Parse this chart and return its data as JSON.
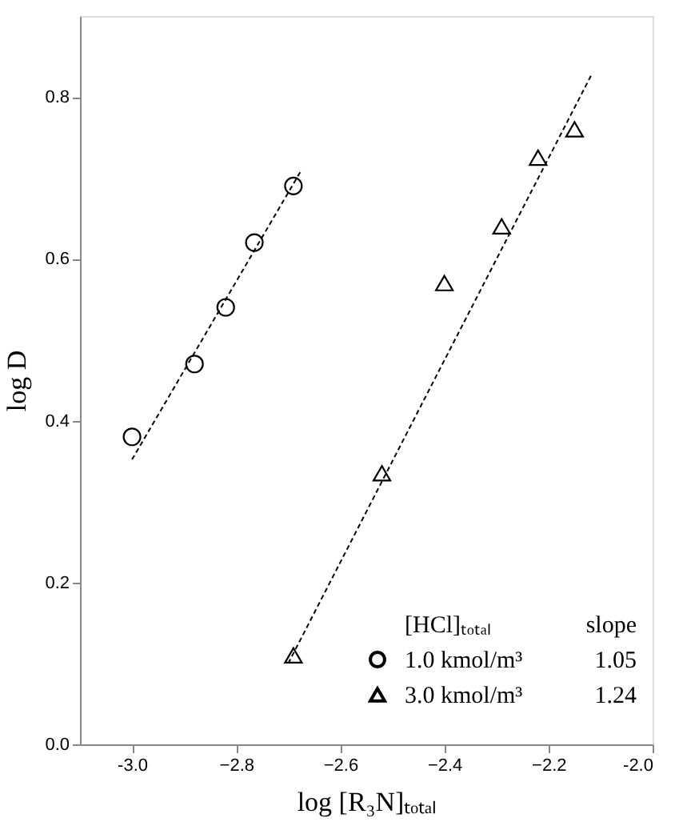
{
  "chart_data": {
    "type": "scatter",
    "xlabel": "log [R₃N]ₜₒₜₐₗ",
    "ylabel": "log D",
    "xlim": [
      -3.1,
      -2.0
    ],
    "xticks": [
      {
        "value": -3.0,
        "label": "-3.0"
      },
      -2.8,
      -2.6,
      -2.4,
      -2.2,
      {
        "value": -2.0,
        "label": "-2.0"
      }
    ],
    "ylim": [
      0.0,
      0.9
    ],
    "yticks": [
      {
        "value": 0.0,
        "label": "0.0"
      },
      0.2,
      0.4,
      0.6,
      0.8
    ],
    "grid": false,
    "legend": "bottom right",
    "legend_title": "[HCl]ₜₒₜₐₗ",
    "annotations": [
      "slope",
      "1.05",
      "1.24"
    ],
    "series": [
      {
        "name": "1.0 kmol/m³",
        "color": "#000000",
        "marker": "circle",
        "x": [
          -3.0,
          -2.88,
          -2.82,
          -2.765,
          -2.69
        ],
        "values": [
          0.38,
          0.47,
          0.54,
          0.62,
          0.69
        ]
      },
      {
        "name": "3.0 kmol/m³",
        "color": "#000000",
        "marker": "triangle",
        "x": [
          -2.69,
          -2.52,
          -2.4,
          -2.29,
          -2.22,
          -2.15
        ],
        "values": [
          0.11,
          0.335,
          0.57,
          0.64,
          0.725,
          0.76
        ]
      },
      {
        "type": "line",
        "color": "#000000",
        "line_style": "dashed",
        "x": [
          -3.0,
          -2.677
        ],
        "values": [
          0.352,
          0.707
        ]
      },
      {
        "type": "line",
        "color": "#000000",
        "line_style": "dashed",
        "x": [
          -2.7,
          -2.117
        ],
        "values": [
          0.1,
          0.828
        ]
      }
    ]
  }
}
